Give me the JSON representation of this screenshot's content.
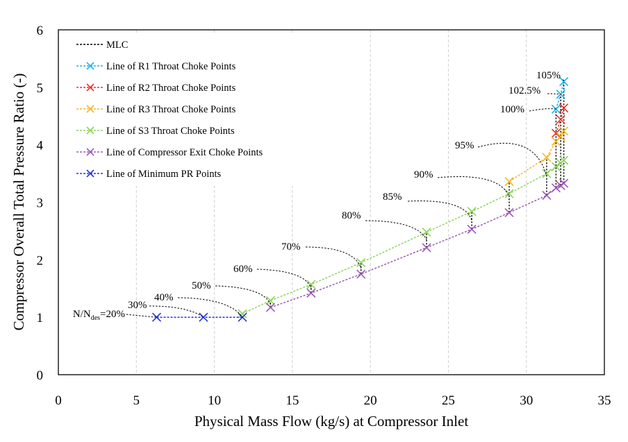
{
  "chart_data": {
    "type": "line",
    "xlabel": "Physical Mass Flow (kg/s) at Compressor Inlet",
    "ylabel": "Compressor Overall Total Pressure Ratio (-)",
    "xlim": [
      0,
      35
    ],
    "ylim": [
      0,
      6
    ],
    "x_ticks": [
      0,
      5,
      10,
      15,
      20,
      25,
      30,
      35
    ],
    "y_ticks": [
      0,
      1,
      2,
      3,
      4,
      5,
      6
    ],
    "x_gridlines": [
      5,
      10,
      15,
      20,
      25,
      30
    ],
    "legend_position": "top-left",
    "series": [
      {
        "name": "MLC",
        "color": "#000000",
        "marker": "none",
        "segments": [
          [
            [
              13.6,
              1.17
            ],
            [
              13.6,
              1.29
            ]
          ],
          [
            [
              16.2,
              1.42
            ],
            [
              16.2,
              1.57
            ]
          ],
          [
            [
              19.4,
              1.75
            ],
            [
              19.4,
              1.95
            ]
          ],
          [
            [
              23.6,
              2.21
            ],
            [
              23.6,
              2.48
            ]
          ],
          [
            [
              26.5,
              2.53
            ],
            [
              26.5,
              2.84
            ]
          ],
          [
            [
              28.9,
              2.82
            ],
            [
              28.9,
              3.36
            ]
          ],
          [
            [
              31.3,
              3.12
            ],
            [
              31.3,
              3.78
            ]
          ],
          [
            [
              31.9,
              3.25
            ],
            [
              31.9,
              4.62
            ]
          ],
          [
            [
              32.2,
              3.29
            ],
            [
              32.2,
              4.88
            ]
          ],
          [
            [
              32.4,
              3.33
            ],
            [
              32.4,
              5.1
            ]
          ]
        ]
      },
      {
        "name": "Line of R1 Throat Choke Points",
        "color": "#1ab3e8",
        "marker": "x",
        "x": [
          31.9,
          32.2,
          32.4
        ],
        "y": [
          4.62,
          4.88,
          5.1
        ]
      },
      {
        "name": "Line of R2 Throat Choke Points",
        "color": "#e8312a",
        "marker": "x",
        "x": [
          31.9,
          32.2,
          32.4
        ],
        "y": [
          4.2,
          4.44,
          4.64
        ]
      },
      {
        "name": "Line of R3 Throat Choke Points",
        "color": "#f6b622",
        "marker": "x",
        "x": [
          28.9,
          31.3,
          31.9,
          32.2,
          32.4
        ],
        "y": [
          3.36,
          3.78,
          4.06,
          4.14,
          4.24
        ]
      },
      {
        "name": "Line of S3 Throat Choke Points",
        "color": "#8ad45a",
        "marker": "x",
        "x": [
          11.8,
          13.6,
          16.2,
          19.4,
          23.6,
          26.5,
          28.9,
          31.3,
          31.9,
          32.2,
          32.4
        ],
        "y": [
          1.06,
          1.29,
          1.57,
          1.95,
          2.48,
          2.84,
          3.15,
          3.5,
          3.62,
          3.68,
          3.73
        ]
      },
      {
        "name": "Line of Compressor Exit Choke Points",
        "color": "#9b59b6",
        "marker": "x",
        "x": [
          13.6,
          16.2,
          19.4,
          23.6,
          26.5,
          28.9,
          31.3,
          31.9,
          32.2,
          32.4
        ],
        "y": [
          1.17,
          1.42,
          1.75,
          2.21,
          2.53,
          2.82,
          3.12,
          3.25,
          3.29,
          3.33
        ]
      },
      {
        "name": "Line of Minimum PR Points",
        "color": "#2233dd",
        "marker": "x",
        "x": [
          6.3,
          9.3,
          11.8
        ],
        "y": [
          1.0,
          1.0,
          1.0
        ]
      }
    ],
    "annotations": [
      {
        "text": "N/N",
        "subscript": "des",
        "suffix": "=20%",
        "x": 6.3,
        "y": 1.0
      },
      {
        "text": "30%",
        "x": 9.3,
        "y": 1.0
      },
      {
        "text": "40%",
        "x": 11.8,
        "y": 1.0
      },
      {
        "text": "50%",
        "x": 13.6,
        "y": 1.22
      },
      {
        "text": "60%",
        "x": 16.2,
        "y": 1.5
      },
      {
        "text": "70%",
        "x": 19.4,
        "y": 1.85
      },
      {
        "text": "80%",
        "x": 23.6,
        "y": 2.35
      },
      {
        "text": "85%",
        "x": 26.5,
        "y": 2.68
      },
      {
        "text": "90%",
        "x": 28.9,
        "y": 3.09
      },
      {
        "text": "95%",
        "x": 31.3,
        "y": 3.45
      },
      {
        "text": "100%",
        "x": 31.9,
        "y": 4.62
      },
      {
        "text": "102.5%",
        "x": 32.2,
        "y": 4.88
      },
      {
        "text": "105%",
        "x": 32.4,
        "y": 5.1
      }
    ]
  }
}
